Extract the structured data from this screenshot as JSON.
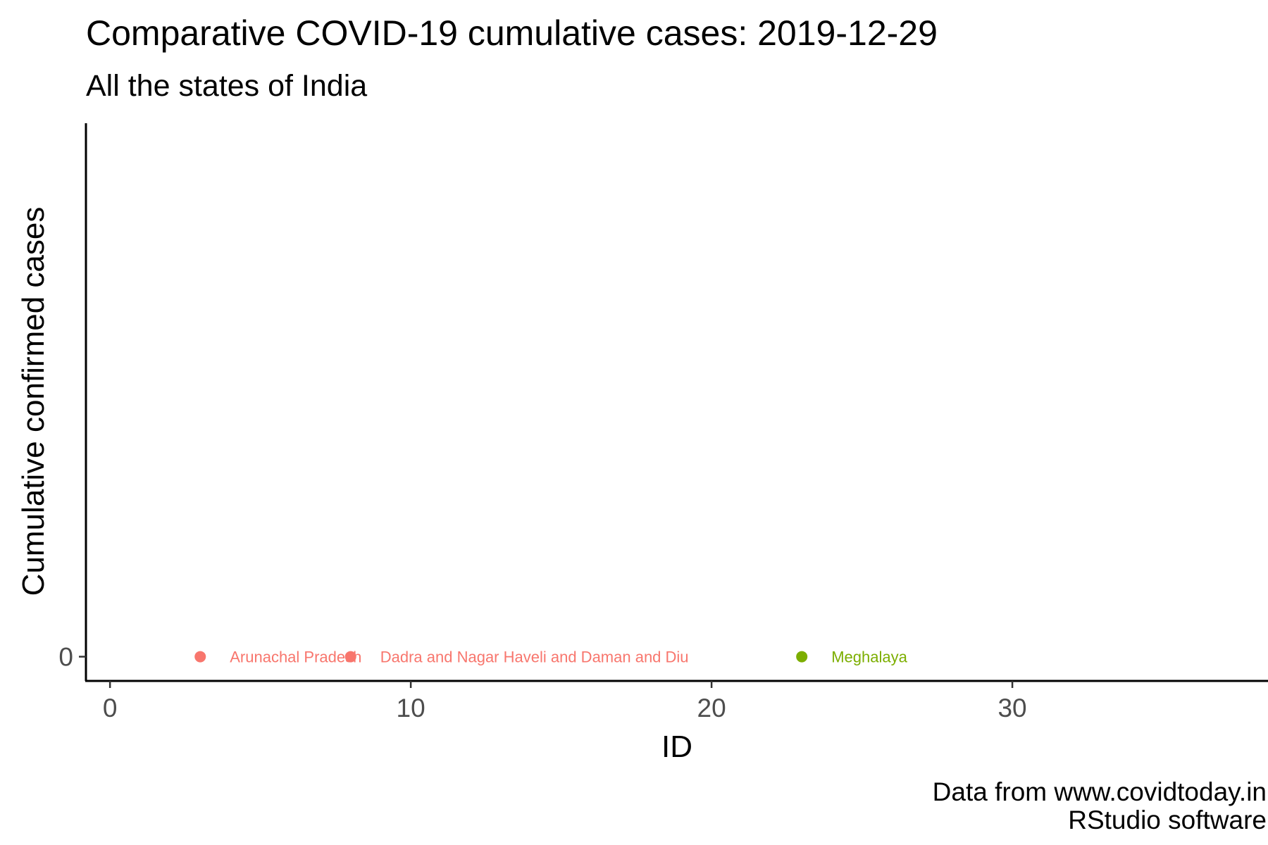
{
  "chart_data": {
    "type": "scatter",
    "title": "Comparative COVID-19 cumulative cases: 2019-12-29",
    "subtitle": "All the states of India",
    "xlabel": "ID",
    "ylabel": "Cumulative confirmed cases",
    "caption": [
      "Data from www.covidtoday.in",
      "RStudio software"
    ],
    "xlim": [
      -0.8,
      38.5
    ],
    "xticks": [
      0,
      10,
      20,
      30
    ],
    "ylim": [
      -1,
      22
    ],
    "yticks": [
      0
    ],
    "grid": false,
    "legend": "none",
    "points": [
      {
        "label": "Arunachal Pradesh",
        "x": 3,
        "y": 0,
        "color": "#F8766D"
      },
      {
        "label": "Dadra and Nagar Haveli and Daman and Diu",
        "x": 8,
        "y": 0,
        "color": "#F8766D"
      },
      {
        "label": "Meghalaya",
        "x": 23,
        "y": 0,
        "color": "#7CAE00"
      }
    ]
  }
}
